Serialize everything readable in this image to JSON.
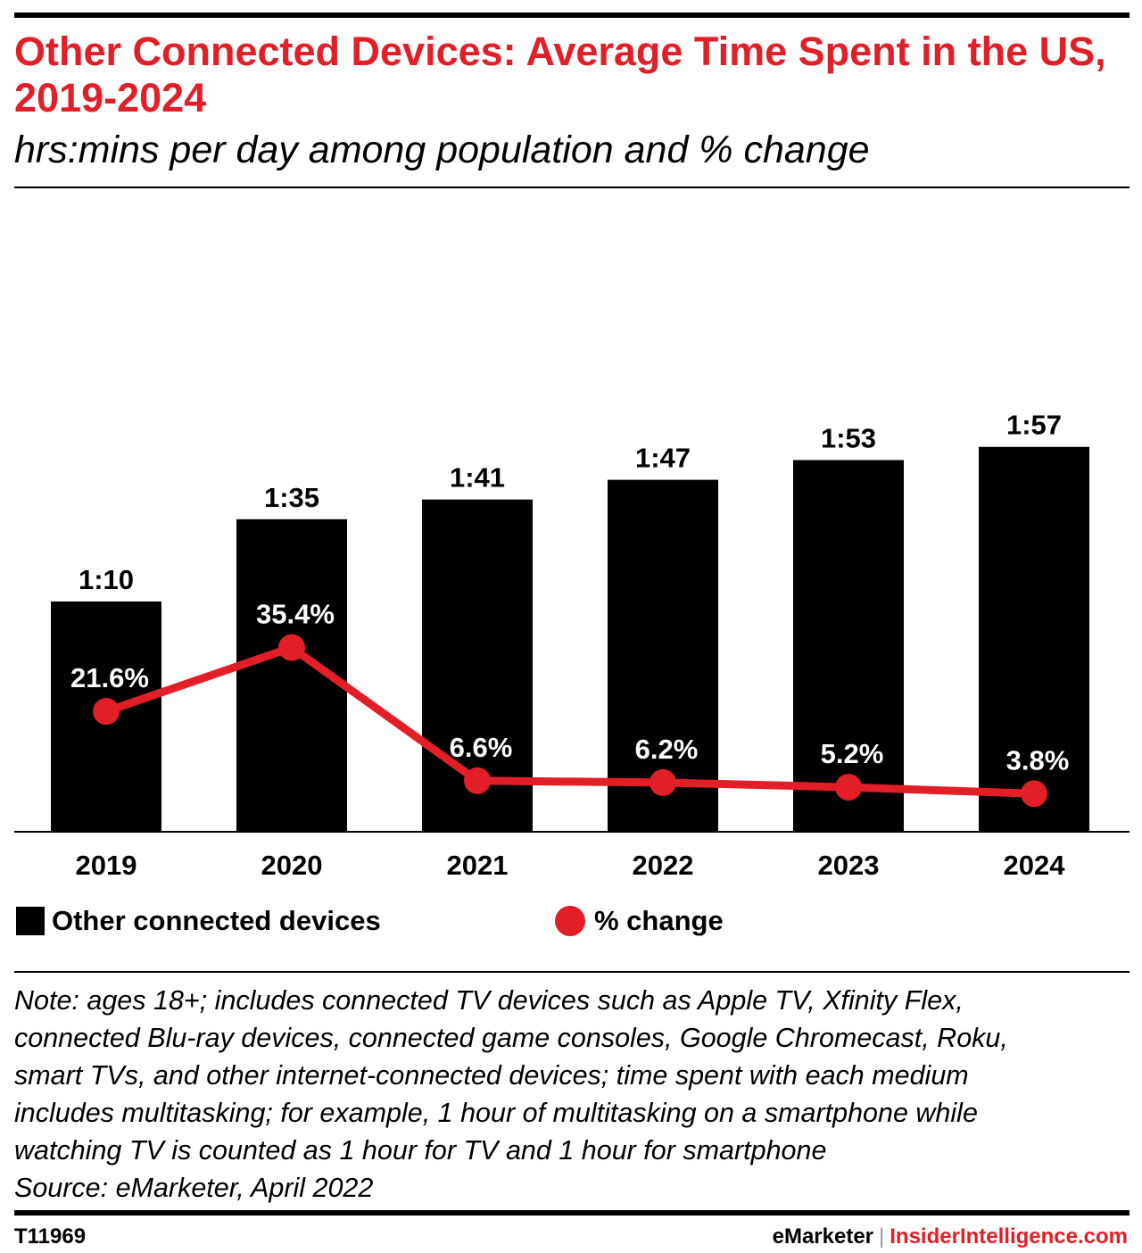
{
  "header": {
    "title": "Other Connected Devices: Average Time Spent in the US, 2019-2024",
    "subtitle": "hrs:mins per day among population and % change"
  },
  "chart_data": {
    "type": "bar",
    "categories": [
      "2019",
      "2020",
      "2021",
      "2022",
      "2023",
      "2024"
    ],
    "series": [
      {
        "name": "Other connected devices",
        "type": "bar",
        "unit": "hrs:mins",
        "values_minutes": [
          70,
          95,
          101,
          107,
          113,
          117
        ],
        "labels": [
          "1:10",
          "1:35",
          "1:41",
          "1:47",
          "1:53",
          "1:57"
        ],
        "color": "#000000"
      },
      {
        "name": "% change",
        "type": "line",
        "unit": "%",
        "values": [
          21.6,
          35.4,
          6.6,
          6.2,
          5.2,
          3.8
        ],
        "labels": [
          "21.6%",
          "35.4%",
          "6.6%",
          "6.2%",
          "5.2%",
          "3.8%"
        ],
        "color": "#e21e26"
      }
    ],
    "legend": [
      "Other connected devices",
      "% change"
    ],
    "legend_position": "bottom",
    "grid": false
  },
  "legend": {
    "bars_label": "Other connected devices",
    "line_label": "% change"
  },
  "note": {
    "lines": [
      "Note: ages 18+; includes connected TV devices such as Apple TV, Xfinity Flex,",
      "connected Blu-ray devices, connected game consoles, Google Chromecast, Roku,",
      "smart TVs, and other internet-connected devices; time spent with each medium",
      "includes multitasking; for example, 1 hour of multitasking on a smartphone while",
      "watching TV is counted as 1 hour for TV and 1 hour for smartphone",
      "Source: eMarketer, April 2022"
    ]
  },
  "footer": {
    "chart_id": "T11969",
    "brand_left": "eMarketer",
    "separator": "|",
    "brand_right": "InsiderIntelligence.com"
  },
  "colors": {
    "accent": "#e21e26",
    "bar": "#000000"
  }
}
